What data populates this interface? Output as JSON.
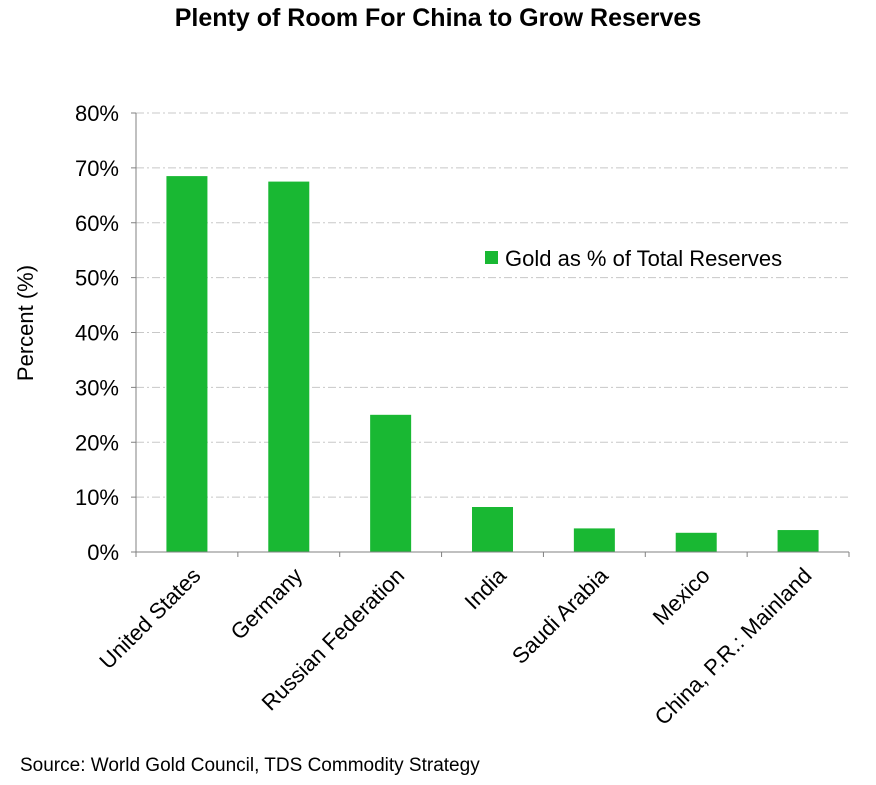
{
  "chart_data": {
    "type": "bar",
    "title": "Plenty of Room For China to Grow Reserves",
    "xlabel": "",
    "ylabel": "Percent (%)",
    "ylim": [
      0,
      80
    ],
    "yticks": [
      0,
      10,
      20,
      30,
      40,
      50,
      60,
      70,
      80
    ],
    "ytick_labels": [
      "0%",
      "10%",
      "20%",
      "30%",
      "40%",
      "50%",
      "60%",
      "70%",
      "80%"
    ],
    "categories": [
      "United States",
      "Germany",
      "Russian Federation",
      "India",
      "Saudi Arabia",
      "Mexico",
      "China, P.R.: Mainland"
    ],
    "series": [
      {
        "name": "Gold as % of Total Reserves",
        "color": "#19b833",
        "values": [
          68.5,
          67.5,
          25.0,
          8.2,
          4.3,
          3.5,
          4.0
        ]
      }
    ],
    "legend_position": "right",
    "grid": true,
    "source": "Source: World Gold Council, TDS Commodity Strategy"
  }
}
